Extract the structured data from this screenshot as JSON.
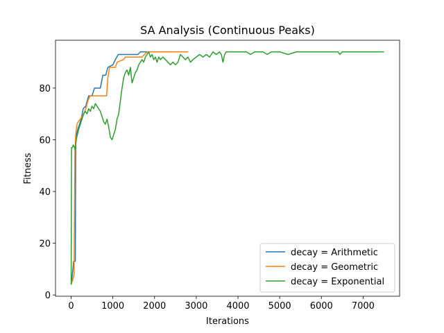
{
  "chart_data": {
    "type": "line",
    "title": "SA Analysis (Continuous Peaks)",
    "xlabel": "Iterations",
    "ylabel": "Fitness",
    "xlim": [
      -375,
      7875
    ],
    "ylim": [
      -0.5,
      98.5
    ],
    "xticks": [
      0,
      1000,
      2000,
      3000,
      4000,
      5000,
      6000,
      7000
    ],
    "yticks": [
      0,
      20,
      40,
      60,
      80
    ],
    "grid": false,
    "legend_position": "lower-right",
    "series": [
      {
        "name": "decay = Arithmetic",
        "color": "#1f77b4",
        "points": [
          [
            0,
            4
          ],
          [
            30,
            8
          ],
          [
            60,
            13
          ],
          [
            100,
            13
          ],
          [
            110,
            58
          ],
          [
            130,
            62
          ],
          [
            160,
            64
          ],
          [
            200,
            66
          ],
          [
            240,
            68
          ],
          [
            290,
            72
          ],
          [
            350,
            73
          ],
          [
            420,
            77
          ],
          [
            500,
            77
          ],
          [
            560,
            80
          ],
          [
            700,
            80
          ],
          [
            760,
            85
          ],
          [
            830,
            85
          ],
          [
            880,
            88
          ],
          [
            1000,
            89
          ],
          [
            1060,
            91
          ],
          [
            1130,
            93
          ],
          [
            1400,
            93
          ],
          [
            1600,
            93
          ],
          [
            1660,
            94
          ],
          [
            1800,
            94
          ],
          [
            2000,
            94
          ]
        ]
      },
      {
        "name": "decay = Geometric",
        "color": "#ff7f0e",
        "points": [
          [
            0,
            4
          ],
          [
            40,
            6
          ],
          [
            70,
            8
          ],
          [
            90,
            55
          ],
          [
            110,
            62
          ],
          [
            140,
            66
          ],
          [
            170,
            67
          ],
          [
            220,
            68
          ],
          [
            300,
            70
          ],
          [
            350,
            72
          ],
          [
            400,
            75
          ],
          [
            450,
            77
          ],
          [
            850,
            77
          ],
          [
            880,
            84
          ],
          [
            920,
            88
          ],
          [
            1060,
            88
          ],
          [
            1100,
            90
          ],
          [
            1250,
            91
          ],
          [
            1300,
            92
          ],
          [
            1700,
            92
          ],
          [
            1760,
            93
          ],
          [
            1820,
            94
          ],
          [
            2000,
            94
          ],
          [
            2800,
            94
          ]
        ]
      },
      {
        "name": "decay = Exponential",
        "color": "#2ca02c",
        "points": [
          [
            0,
            4
          ],
          [
            10,
            57
          ],
          [
            20,
            57
          ],
          [
            30,
            57
          ],
          [
            50,
            58
          ],
          [
            80,
            57
          ],
          [
            100,
            56
          ],
          [
            120,
            60
          ],
          [
            150,
            62
          ],
          [
            180,
            64
          ],
          [
            220,
            66
          ],
          [
            260,
            68
          ],
          [
            300,
            70
          ],
          [
            340,
            71
          ],
          [
            380,
            70
          ],
          [
            420,
            72
          ],
          [
            460,
            71
          ],
          [
            500,
            73
          ],
          [
            540,
            72
          ],
          [
            580,
            74
          ],
          [
            620,
            73
          ],
          [
            660,
            72
          ],
          [
            700,
            71
          ],
          [
            740,
            69
          ],
          [
            780,
            67
          ],
          [
            820,
            66
          ],
          [
            860,
            68
          ],
          [
            900,
            65
          ],
          [
            940,
            61
          ],
          [
            980,
            60
          ],
          [
            1020,
            62
          ],
          [
            1060,
            64
          ],
          [
            1100,
            68
          ],
          [
            1140,
            70
          ],
          [
            1180,
            75
          ],
          [
            1220,
            80
          ],
          [
            1260,
            84
          ],
          [
            1300,
            86
          ],
          [
            1340,
            87
          ],
          [
            1380,
            85
          ],
          [
            1420,
            88
          ],
          [
            1460,
            82
          ],
          [
            1500,
            84
          ],
          [
            1540,
            86
          ],
          [
            1580,
            87
          ],
          [
            1620,
            89
          ],
          [
            1660,
            90
          ],
          [
            1700,
            91
          ],
          [
            1740,
            90
          ],
          [
            1780,
            92
          ],
          [
            1820,
            93
          ],
          [
            1860,
            94
          ],
          [
            1900,
            92
          ],
          [
            1940,
            93
          ],
          [
            1980,
            91
          ],
          [
            2020,
            92
          ],
          [
            2060,
            90
          ],
          [
            2100,
            92
          ],
          [
            2140,
            91
          ],
          [
            2200,
            92
          ],
          [
            2260,
            91
          ],
          [
            2320,
            90
          ],
          [
            2380,
            89
          ],
          [
            2440,
            90
          ],
          [
            2500,
            89
          ],
          [
            2560,
            90
          ],
          [
            2620,
            93
          ],
          [
            2680,
            92
          ],
          [
            2740,
            91
          ],
          [
            2800,
            92
          ],
          [
            2860,
            90
          ],
          [
            2920,
            91
          ],
          [
            3000,
            92
          ],
          [
            3080,
            93
          ],
          [
            3160,
            92
          ],
          [
            3240,
            93
          ],
          [
            3320,
            92
          ],
          [
            3400,
            94
          ],
          [
            3480,
            93
          ],
          [
            3560,
            94
          ],
          [
            3600,
            93
          ],
          [
            3640,
            90
          ],
          [
            3680,
            93
          ],
          [
            3720,
            94
          ],
          [
            4000,
            94
          ],
          [
            4200,
            94
          ],
          [
            4300,
            93
          ],
          [
            4400,
            94
          ],
          [
            4600,
            94
          ],
          [
            4700,
            93
          ],
          [
            4800,
            94
          ],
          [
            5000,
            94
          ],
          [
            5200,
            93
          ],
          [
            5400,
            94
          ],
          [
            5600,
            94
          ],
          [
            5800,
            94
          ],
          [
            6000,
            94
          ],
          [
            6200,
            94
          ],
          [
            6400,
            94
          ],
          [
            6440,
            93
          ],
          [
            6500,
            94
          ],
          [
            7000,
            94
          ],
          [
            7500,
            94
          ]
        ]
      }
    ]
  }
}
